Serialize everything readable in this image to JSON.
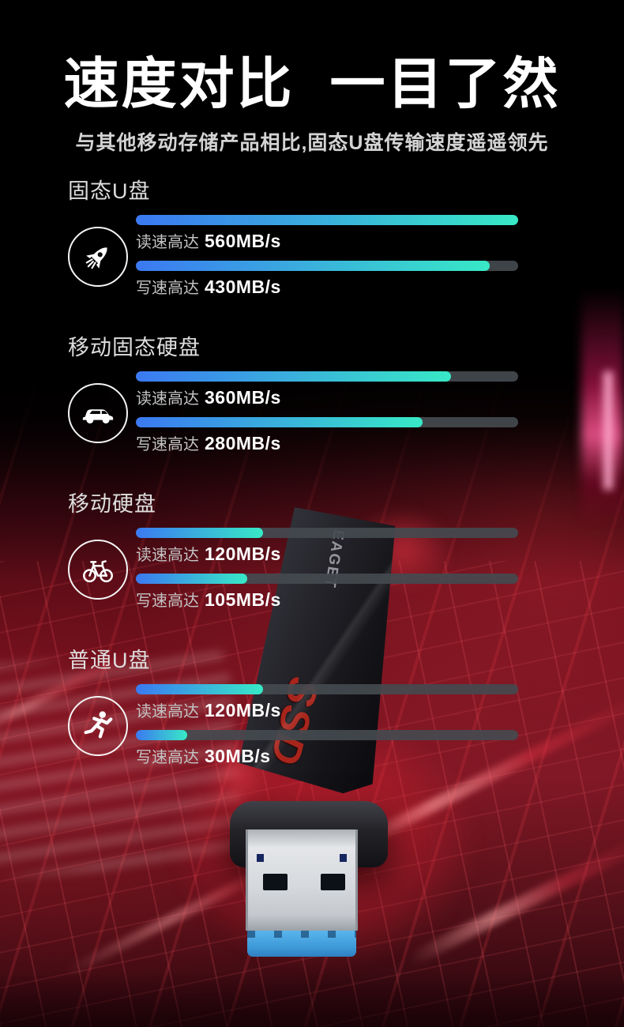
{
  "header": {
    "title": "速度对比  一目了然",
    "subtitle": "与其他移动存储产品相比,固态U盘传输速度遥遥领先"
  },
  "chart_data": {
    "type": "bar",
    "orientation": "horizontal",
    "unit": "MB/s",
    "categories": [
      "固态U盘",
      "移动固态硬盘",
      "移动硬盘",
      "普通U盘"
    ],
    "category_icons": [
      "rocket-icon",
      "car-icon",
      "bicycle-icon",
      "runner-icon"
    ],
    "series": [
      {
        "name": "读速高达",
        "values": [
          560,
          360,
          120,
          120
        ]
      },
      {
        "name": "写速高达",
        "values": [
          430,
          280,
          105,
          30
        ]
      }
    ],
    "bar_fill_percent": {
      "read": [
        100,
        82.5,
        33.3,
        33.3
      ],
      "write": [
        92.6,
        75,
        29.2,
        13.4
      ]
    },
    "colors": {
      "bar_gradient_start": "#3b79f2",
      "bar_gradient_end": "#38e9c6",
      "track": "#444a4f",
      "value_text": "#ffffff",
      "label_text": "#c3c3c3",
      "background_top": "#000000",
      "background_scene": "#6e1421"
    },
    "legend_position": "none",
    "grid": false
  },
  "sections": [
    {
      "label": "固态U盘",
      "icon": "rocket-icon",
      "read_prefix": "读速高达",
      "read_value": "560MB/s",
      "write_prefix": "写速高达",
      "write_value": "430MB/s",
      "read_pct": 100,
      "write_pct": 92.6
    },
    {
      "label": "移动固态硬盘",
      "icon": "car-icon",
      "read_prefix": "读速高达",
      "read_value": "360MB/s",
      "write_prefix": "写速高达",
      "write_value": "280MB/s",
      "read_pct": 82.5,
      "write_pct": 75
    },
    {
      "label": "移动硬盘",
      "icon": "bicycle-icon",
      "read_prefix": "读速高达",
      "read_value": "120MB/s",
      "write_prefix": "写速高达",
      "write_value": "105MB/s",
      "read_pct": 33.3,
      "write_pct": 29.2
    },
    {
      "label": "普通U盘",
      "icon": "runner-icon",
      "read_prefix": "读速高达",
      "read_value": "120MB/s",
      "write_prefix": "写速高达",
      "write_value": "30MB/s",
      "read_pct": 33.3,
      "write_pct": 13.4
    }
  ],
  "product": {
    "brand": "EAGET",
    "badge": "SSD"
  }
}
